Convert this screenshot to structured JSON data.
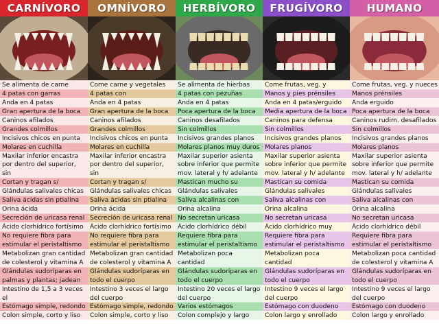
{
  "columns": [
    {
      "key": "carnivoro",
      "title": "CARNÍVORO",
      "header_color": "#d9262e",
      "photo_icon": "wolf-teeth",
      "light": "#fbe8e8",
      "dark": "#f2b3b6",
      "photo": {
        "bg": "#5a4a3a",
        "mouth": "#7a1f1f",
        "fur": "#bfae93"
      }
    },
    {
      "key": "omnivoro",
      "title": "OMNÍVORO",
      "header_color": "#a9733e",
      "photo_icon": "bear-teeth",
      "light": "#f7efe2",
      "dark": "#e4c99f",
      "photo": {
        "bg": "#2c241c",
        "mouth": "#5a1d18",
        "fur": "#4a3a2a"
      }
    },
    {
      "key": "herbivoro",
      "title": "HERBÍVORO",
      "header_color": "#2fa84a",
      "photo_icon": "horse-teeth",
      "light": "#e7f6e8",
      "dark": "#a9dfae",
      "photo": {
        "bg": "#6d8a5a",
        "mouth": "#3a2a24",
        "fur": "#6a6a6a"
      }
    },
    {
      "key": "frugivoro",
      "title": "FRUGÍVORO",
      "header_color": "#8a4fc9",
      "photo_icon": "primate-teeth",
      "light": "#fdf7e0",
      "dark": "#e7c5e8",
      "photo": {
        "bg": "#2a2a2a",
        "mouth": "#5a1f22",
        "fur": "#1c1c1c"
      }
    },
    {
      "key": "humano",
      "title": "HUMANO",
      "header_color": "#d35fa6",
      "photo_icon": "human-teeth",
      "light": "#fbf0ee",
      "dark": "#ebc3d6",
      "photo": {
        "bg": "#e7b7a0",
        "mouth": "#8a2a3a",
        "fur": "#d99a84"
      }
    }
  ],
  "rows": [
    {
      "style": "light",
      "cells": [
        "Se alimenta de carne",
        "Come carne y vegetales",
        "Se alimenta de hierbas",
        "Come frutas, veg. y nueces",
        "Come frutas, veg. y nueces"
      ]
    },
    {
      "style": "dark",
      "cells": [
        "4 patas con garras",
        "4 patas con garras/pezuñas",
        "4 patas con pezuñas",
        "Manos y pies prénsiles",
        "Manos prénsiles"
      ]
    },
    {
      "style": "light",
      "cells": [
        "Anda en 4 patas",
        "Anda en 4 patas",
        "Anda en 4 patas",
        "Anda en 4 patas/erguido",
        "Anda erguido"
      ]
    },
    {
      "style": "dark",
      "cells": [
        "Gran apertura de la boca",
        "Gran apertura de la boca",
        "Poca apertura de la boca",
        "Media apertura de la boca",
        "Poca apertura de la boca"
      ]
    },
    {
      "style": "light",
      "cells": [
        "Caninos afilados",
        "Caninos afilados",
        "Caninos desafilados",
        "Caninos para defensa",
        "Caninos rudim. desafilados"
      ]
    },
    {
      "style": "dark",
      "cells": [
        "Grandes colmillos",
        "Grandes colmillos",
        "Sin colmillos",
        "Sin colmillos",
        "Sin colmillos"
      ]
    },
    {
      "style": "light",
      "cells": [
        "Incisivos chicos en punta",
        "Incisivos chicos en punta",
        "Incisivos grandes planos",
        "Incisivos grandes planos",
        "Incisivos grandes planos"
      ]
    },
    {
      "style": "dark",
      "cells": [
        "Molares en cuchilla",
        "Molares en cuchilla",
        "Molares planos muy duros",
        "Molares planos",
        "Molares planos"
      ]
    },
    {
      "style": "light",
      "cells": [
        "Maxilar inferior encastra\npor dentro del superior, sin\nmov. lateral ni h/ adelante",
        "Maxilar inferior encastra\npor dentro del superior, sin\nmov. lateral ni h/ adelante",
        "Maxilar superior asienta\nsobre inferior que permite\nmov. lateral y h/ adelante",
        "Maxilar superior asienta\nsobre inferior que permite\nmov. lateral y h/ adelante",
        "Maxilar superior asienta\nsobre inferior que permite\nmov. lateral y h/ adelante"
      ]
    },
    {
      "style": "dark",
      "cells": [
        "Cortan y tragan s/ masticar",
        "Cortan y tragan s/ masticar",
        "Mastican mucho su comida",
        "Mastican su comida",
        "Mastican su comida"
      ]
    },
    {
      "style": "light",
      "cells": [
        "Glándulas salivales chicas",
        "Glándulas salivales chicas",
        "Glándulas salivales grandes",
        "Glándulas salivales grandes",
        "Glándulas salivales grandes"
      ]
    },
    {
      "style": "dark",
      "cells": [
        "Saliva ácidas sin ptialina",
        "Saliva ácidas sin ptialina",
        "Saliva alcalinas con ptialina",
        "Saliva alcalinas con ptialina",
        "Saliva alcalinas con ptialina"
      ]
    },
    {
      "style": "light",
      "cells": [
        "Orina ácida",
        "Orina ácida",
        "Orina alcalina",
        "Orina alcalina",
        "Orina alcalina"
      ]
    },
    {
      "style": "dark",
      "cells": [
        "Secreción de uricasa renal",
        "Secreción de uricasa renal",
        "No secretan uricasa",
        "No secretan uricasa",
        "No secretan uricasa"
      ]
    },
    {
      "style": "light",
      "cells": [
        "Ácido clorhídrico fortísimo",
        "Ácido clorhídrico fortísimo",
        "Ácido clorhídrico débil",
        "Ácido clorhídrico muy débil",
        "Ácido clorhídrico débil"
      ]
    },
    {
      "style": "dark",
      "cells": [
        "No requiere fibra para\nestimular el peristaltismo",
        "No requiere fibra para\nestimular el peristaltismo",
        "Requiere fibra para\nestimular el peristaltismo",
        "Requiere fibra para\nestimular el peristaltismo",
        "Requiere fibra para\nestimular el peristaltismo"
      ]
    },
    {
      "style": "light",
      "cells": [
        "Metabolizan gran cantidad\nde colesterol y vitamina A",
        "Metabolizan gran cantidad\nde colesterol y vitamina A",
        "Metabolizan poca cantidad\nde colesterol y vitamina A",
        "Metabolizan poca cantidad\nde colesterol y vitamina A",
        "Metabolizan poca cantidad\nde colesterol y vitamina A"
      ]
    },
    {
      "style": "dark",
      "cells": [
        "Glándulas sudoríparas en\npalmas y plantas; jadean",
        "Glándulas sudoríparas en\ntodo el cuerpo",
        "Glándulas sudoríparas en\ntodo el cuerpo",
        "Glándulas sudoríparas en\ntodo el cuerpo",
        "Glándulas sudoríparas en\ntodo el cuerpo"
      ]
    },
    {
      "style": "light",
      "cells": [
        "Intestino de 1,5 a 3 veces el\nlargo del cuerpo",
        "Intestino 3 veces el largo\ndel cuerpo",
        "Intestino 20 veces el largo\ndel cuerpo",
        "Intestino 9 veces el largo\ndel cuerpo",
        "Intestino 9 veces el largo\ndel cuerpo"
      ]
    },
    {
      "style": "dark",
      "cells": [
        "Estómago simple, redondo",
        "Estómago simple, redondo",
        "Varios estómagos",
        "Estómago con duodeno",
        "Estómago con duodeno"
      ]
    },
    {
      "style": "light",
      "cells": [
        "Colon simple, corto y liso",
        "Colon simple, corto y liso",
        "Colon complejo y largo",
        "Colon largo y enrollado",
        "Colon largo y enrollado"
      ]
    }
  ]
}
